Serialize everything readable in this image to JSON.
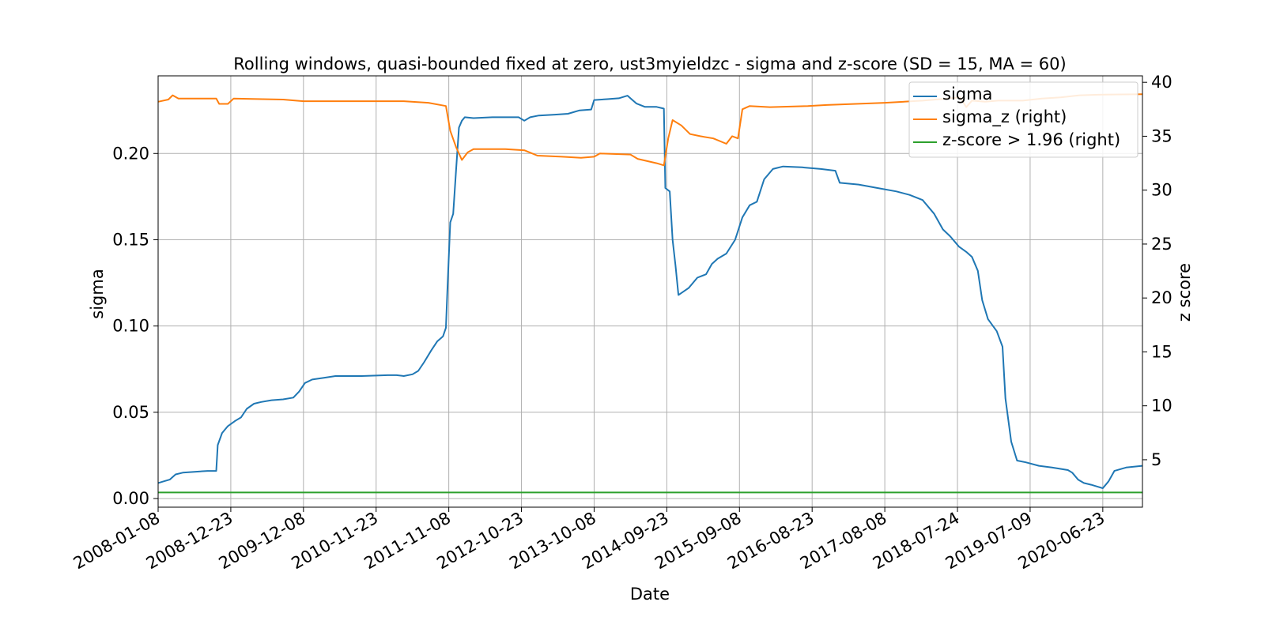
{
  "chart_data": {
    "type": "line",
    "title": "Rolling windows, quasi-bounded fixed at zero, ust3myieldzc - sigma and z-score (SD = 15, MA = 60)",
    "xlabel": "Date",
    "ylabel": "sigma",
    "y2label": "z score",
    "xlim": [
      "2008-01-08",
      "2020-12-31"
    ],
    "ylim": [
      -0.005,
      0.245
    ],
    "y2lim": [
      0.6,
      40.6
    ],
    "x_ticks": [
      "2008-01-08",
      "2008-12-23",
      "2009-12-08",
      "2010-11-23",
      "2011-11-08",
      "2012-10-23",
      "2013-10-08",
      "2014-09-23",
      "2015-09-08",
      "2016-08-23",
      "2017-08-08",
      "2018-07-24",
      "2019-07-09",
      "2020-06-23"
    ],
    "y_ticks": [
      "0.00",
      "0.05",
      "0.10",
      "0.15",
      "0.20"
    ],
    "y2_ticks": [
      "5",
      "10",
      "15",
      "20",
      "25",
      "30",
      "35",
      "40"
    ],
    "grid": true,
    "legend_position": "top-right",
    "series": [
      {
        "name": "sigma",
        "axis": "left",
        "color": "#1f77b4",
        "points": [
          [
            "2008-01-08",
            0.009
          ],
          [
            "2008-02-05",
            0.01
          ],
          [
            "2008-03-04",
            0.011
          ],
          [
            "2008-04-01",
            0.014
          ],
          [
            "2008-05-06",
            0.015
          ],
          [
            "2008-07-01",
            0.0155
          ],
          [
            "2008-09-02",
            0.016
          ],
          [
            "2008-10-14",
            0.016
          ],
          [
            "2008-10-21",
            0.031
          ],
          [
            "2008-11-11",
            0.038
          ],
          [
            "2008-12-09",
            0.042
          ],
          [
            "2009-01-13",
            0.045
          ],
          [
            "2009-02-10",
            0.047
          ],
          [
            "2009-03-10",
            0.052
          ],
          [
            "2009-04-14",
            0.055
          ],
          [
            "2009-05-19",
            0.056
          ],
          [
            "2009-07-07",
            0.057
          ],
          [
            "2009-09-01",
            0.0575
          ],
          [
            "2009-10-20",
            0.0585
          ],
          [
            "2009-11-17",
            0.062
          ],
          [
            "2009-12-15",
            0.067
          ],
          [
            "2010-01-19",
            0.069
          ],
          [
            "2010-03-16",
            0.07
          ],
          [
            "2010-05-11",
            0.071
          ],
          [
            "2010-09-14",
            0.071
          ],
          [
            "2011-01-18",
            0.0715
          ],
          [
            "2011-03-01",
            0.0715
          ],
          [
            "2011-04-05",
            0.071
          ],
          [
            "2011-05-17",
            0.072
          ],
          [
            "2011-06-14",
            0.074
          ],
          [
            "2011-07-12",
            0.079
          ],
          [
            "2011-08-16",
            0.086
          ],
          [
            "2011-09-13",
            0.091
          ],
          [
            "2011-10-11",
            0.094
          ],
          [
            "2011-10-25",
            0.099
          ],
          [
            "2011-11-01",
            0.12
          ],
          [
            "2011-11-15",
            0.16
          ],
          [
            "2011-11-29",
            0.165
          ],
          [
            "2011-12-13",
            0.19
          ],
          [
            "2011-12-27",
            0.215
          ],
          [
            "2012-01-10",
            0.219
          ],
          [
            "2012-01-24",
            0.221
          ],
          [
            "2012-03-06",
            0.2205
          ],
          [
            "2012-06-05",
            0.221
          ],
          [
            "2012-10-09",
            0.221
          ],
          [
            "2012-11-06",
            0.219
          ],
          [
            "2012-12-04",
            0.221
          ],
          [
            "2013-01-15",
            0.222
          ],
          [
            "2013-04-02",
            0.2225
          ],
          [
            "2013-06-04",
            0.223
          ],
          [
            "2013-07-30",
            0.225
          ],
          [
            "2013-09-24",
            0.2255
          ],
          [
            "2013-10-08",
            0.231
          ],
          [
            "2013-12-10",
            0.2315
          ],
          [
            "2014-02-04",
            0.232
          ],
          [
            "2014-03-18",
            0.2335
          ],
          [
            "2014-04-29",
            0.229
          ],
          [
            "2014-06-10",
            0.227
          ],
          [
            "2014-08-05",
            0.227
          ],
          [
            "2014-09-09",
            0.226
          ],
          [
            "2014-09-16",
            0.18
          ],
          [
            "2014-10-07",
            0.178
          ],
          [
            "2014-10-21",
            0.15
          ],
          [
            "2014-11-04",
            0.135
          ],
          [
            "2014-11-18",
            0.118
          ],
          [
            "2015-01-06",
            0.122
          ],
          [
            "2015-02-17",
            0.128
          ],
          [
            "2015-03-31",
            0.13
          ],
          [
            "2015-04-28",
            0.136
          ],
          [
            "2015-05-26",
            0.139
          ],
          [
            "2015-07-07",
            0.142
          ],
          [
            "2015-08-18",
            0.15
          ],
          [
            "2015-09-22",
            0.163
          ],
          [
            "2015-10-27",
            0.17
          ],
          [
            "2015-12-01",
            0.172
          ],
          [
            "2016-01-05",
            0.185
          ],
          [
            "2016-02-16",
            0.191
          ],
          [
            "2016-04-05",
            0.1925
          ],
          [
            "2016-07-05",
            0.192
          ],
          [
            "2016-10-04",
            0.191
          ],
          [
            "2016-12-13",
            0.19
          ],
          [
            "2017-01-03",
            0.183
          ],
          [
            "2017-04-04",
            0.182
          ],
          [
            "2017-07-04",
            0.18
          ],
          [
            "2017-10-03",
            0.178
          ],
          [
            "2017-12-05",
            0.176
          ],
          [
            "2018-02-06",
            0.173
          ],
          [
            "2018-04-03",
            0.165
          ],
          [
            "2018-05-15",
            0.156
          ],
          [
            "2018-06-19",
            0.152
          ],
          [
            "2018-07-31",
            0.146
          ],
          [
            "2018-09-04",
            0.143
          ],
          [
            "2018-10-02",
            0.14
          ],
          [
            "2018-10-30",
            0.132
          ],
          [
            "2018-11-20",
            0.115
          ],
          [
            "2018-12-18",
            0.104
          ],
          [
            "2019-01-29",
            0.097
          ],
          [
            "2019-02-26",
            0.088
          ],
          [
            "2019-03-12",
            0.058
          ],
          [
            "2019-04-09",
            0.033
          ],
          [
            "2019-05-07",
            0.022
          ],
          [
            "2019-06-18",
            0.021
          ],
          [
            "2019-08-20",
            0.019
          ],
          [
            "2019-10-22",
            0.018
          ],
          [
            "2020-01-07",
            0.0165
          ],
          [
            "2020-01-28",
            0.015
          ],
          [
            "2020-02-25",
            0.011
          ],
          [
            "2020-03-24",
            0.009
          ],
          [
            "2020-04-28",
            0.008
          ],
          [
            "2020-05-26",
            0.007
          ],
          [
            "2020-06-23",
            0.006
          ],
          [
            "2020-07-21",
            0.01
          ],
          [
            "2020-08-18",
            0.016
          ],
          [
            "2020-10-13",
            0.018
          ],
          [
            "2020-12-31",
            0.019
          ]
        ]
      },
      {
        "name": "sigma_z (right)",
        "axis": "right",
        "color": "#ff7f0e",
        "points": [
          [
            "2008-01-08",
            38.2
          ],
          [
            "2008-02-26",
            38.4
          ],
          [
            "2008-03-18",
            38.8
          ],
          [
            "2008-04-15",
            38.5
          ],
          [
            "2008-07-15",
            38.5
          ],
          [
            "2008-10-14",
            38.5
          ],
          [
            "2008-10-28",
            38.0
          ],
          [
            "2008-12-09",
            38.0
          ],
          [
            "2009-01-06",
            38.5
          ],
          [
            "2009-04-07",
            38.45
          ],
          [
            "2009-09-01",
            38.4
          ],
          [
            "2009-12-08",
            38.25
          ],
          [
            "2010-06-01",
            38.25
          ],
          [
            "2011-04-05",
            38.25
          ],
          [
            "2011-08-02",
            38.1
          ],
          [
            "2011-10-25",
            37.8
          ],
          [
            "2011-11-15",
            35.5
          ],
          [
            "2011-12-13",
            34.0
          ],
          [
            "2012-01-10",
            32.8
          ],
          [
            "2012-02-07",
            33.5
          ],
          [
            "2012-03-06",
            33.8
          ],
          [
            "2012-08-07",
            33.8
          ],
          [
            "2012-11-06",
            33.7
          ],
          [
            "2013-01-08",
            33.2
          ],
          [
            "2013-05-07",
            33.1
          ],
          [
            "2013-08-06",
            33.0
          ],
          [
            "2013-10-08",
            33.1
          ],
          [
            "2013-11-05",
            33.4
          ],
          [
            "2014-04-01",
            33.3
          ],
          [
            "2014-05-06",
            32.9
          ],
          [
            "2014-08-05",
            32.5
          ],
          [
            "2014-09-09",
            32.3
          ],
          [
            "2014-09-30",
            34.8
          ],
          [
            "2014-10-21",
            36.5
          ],
          [
            "2014-12-02",
            36.0
          ],
          [
            "2015-01-13",
            35.2
          ],
          [
            "2015-03-03",
            35.0
          ],
          [
            "2015-05-05",
            34.8
          ],
          [
            "2015-07-07",
            34.3
          ],
          [
            "2015-08-04",
            35.0
          ],
          [
            "2015-09-01",
            34.8
          ],
          [
            "2015-09-22",
            37.5
          ],
          [
            "2015-10-27",
            37.8
          ],
          [
            "2016-02-02",
            37.7
          ],
          [
            "2016-08-02",
            37.8
          ],
          [
            "2016-11-01",
            37.9
          ],
          [
            "2017-08-08",
            38.1
          ],
          [
            "2018-02-06",
            38.3
          ],
          [
            "2018-06-05",
            38.5
          ],
          [
            "2018-08-07",
            38.6
          ],
          [
            "2018-09-04",
            37.7
          ],
          [
            "2018-10-02",
            38.3
          ],
          [
            "2018-12-04",
            38.2
          ],
          [
            "2019-02-05",
            38.3
          ],
          [
            "2019-06-04",
            38.3
          ],
          [
            "2019-09-03",
            38.5
          ],
          [
            "2019-12-03",
            38.6
          ],
          [
            "2020-03-03",
            38.8
          ],
          [
            "2020-06-02",
            38.85
          ],
          [
            "2020-12-31",
            38.9
          ]
        ]
      },
      {
        "name": "z-score > 1.96 (right)",
        "axis": "right",
        "color": "#2ca02c",
        "points": [
          [
            "2008-01-08",
            1.96
          ],
          [
            "2020-12-31",
            1.96
          ]
        ]
      }
    ]
  }
}
